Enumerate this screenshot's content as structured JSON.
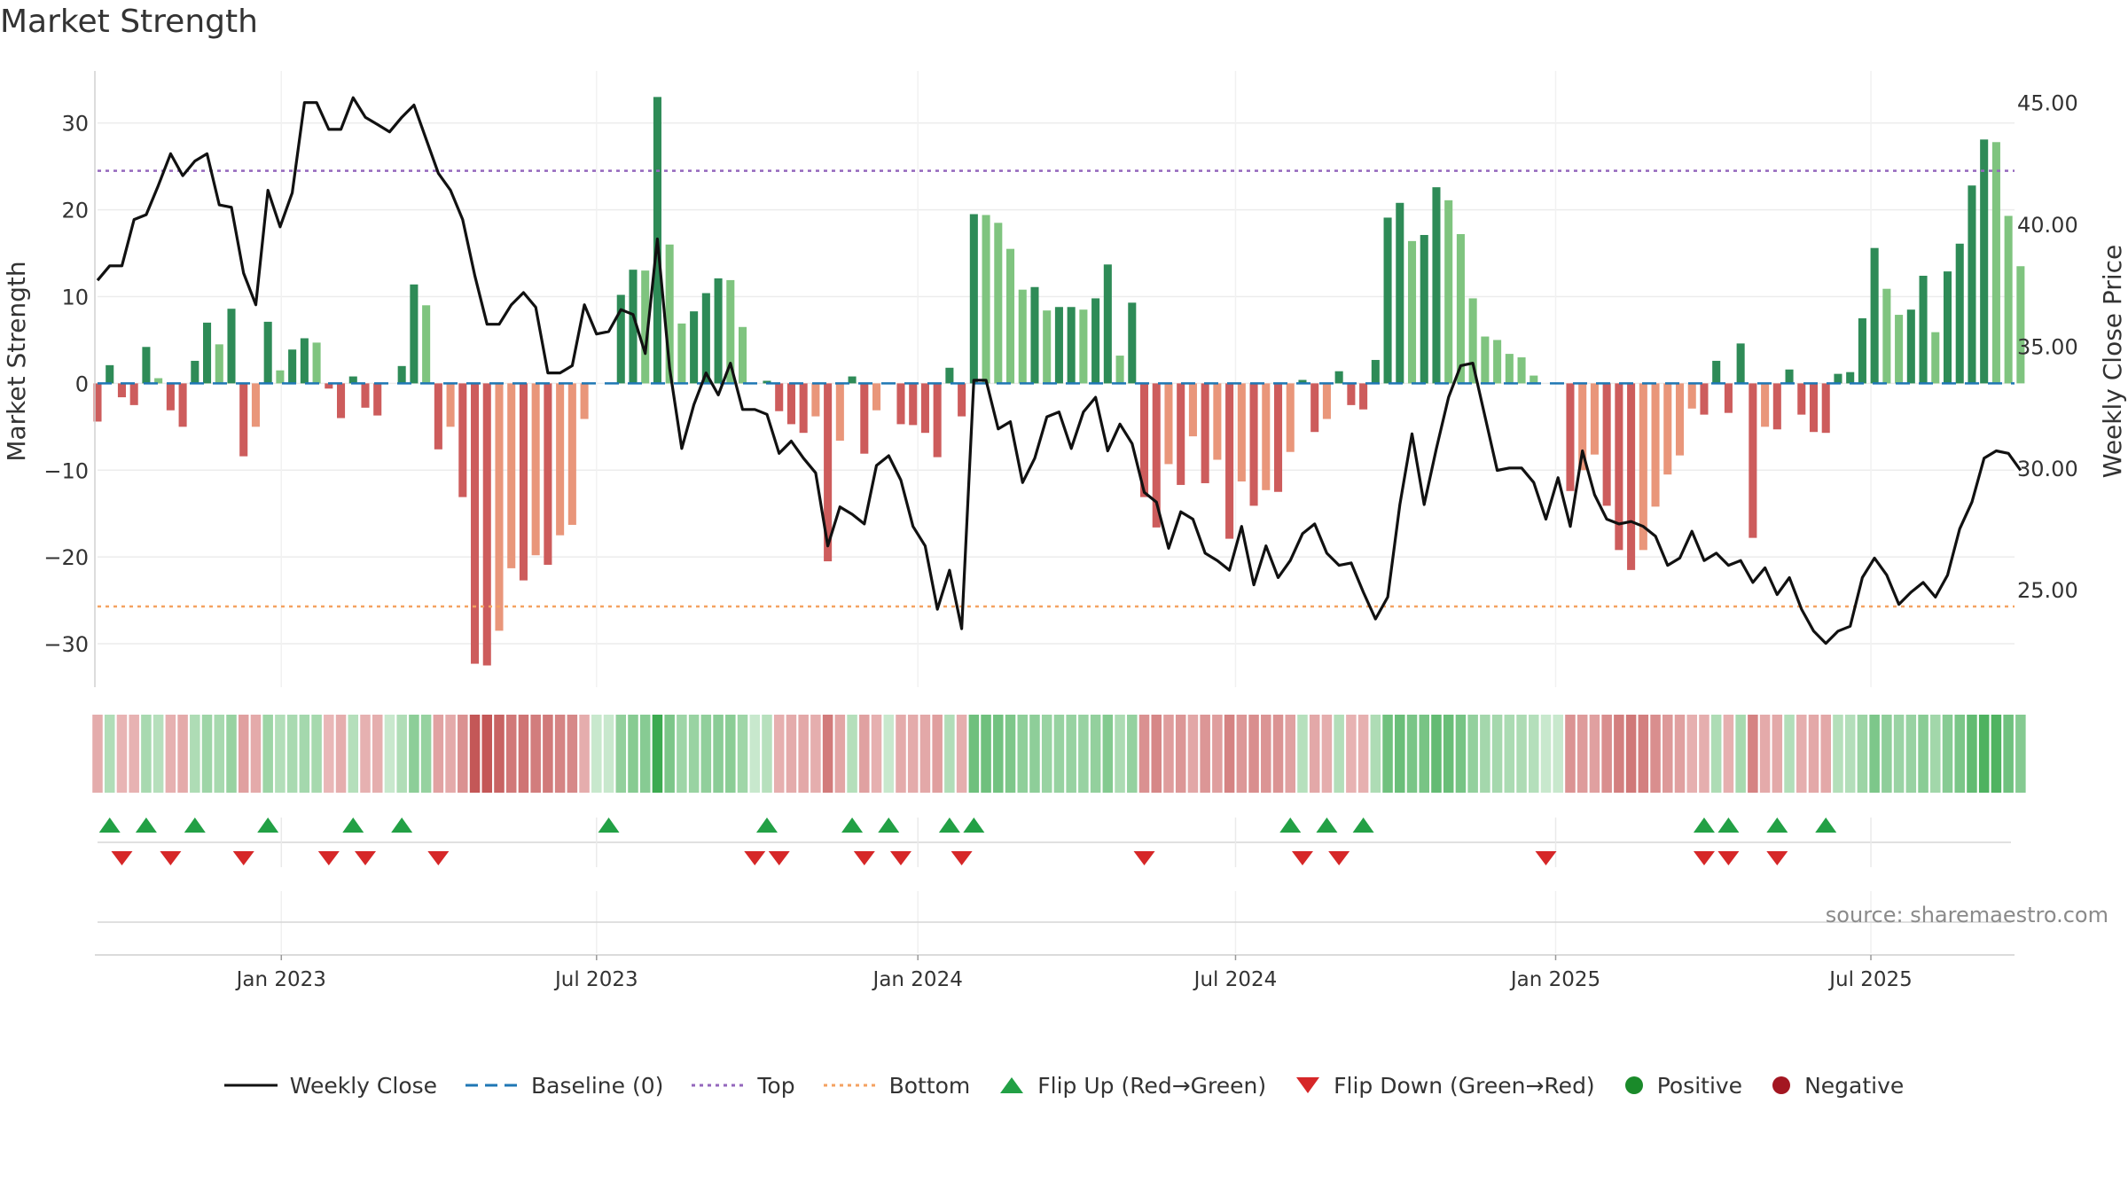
{
  "title": "Market Strength",
  "source": "source: sharemaestro.com",
  "colors": {
    "price": "#111111",
    "baseline": "#1f77b4",
    "top": "#9467bd",
    "bottom": "#f4a261",
    "up": "#22a045",
    "down": "#d62728",
    "positive": "#1a8a2a",
    "negative": "#a31621",
    "dark_green": "#2e8b57",
    "light_green": "#7fc47f",
    "dark_red": "#cd5c5c",
    "light_red": "#e9967a"
  },
  "legend": [
    {
      "key": "weekly-close",
      "label": "Weekly Close"
    },
    {
      "key": "baseline",
      "label": "Baseline (0)"
    },
    {
      "key": "top",
      "label": "Top"
    },
    {
      "key": "bottom",
      "label": "Bottom"
    },
    {
      "key": "flip-up",
      "label": "Flip Up (Red→Green)"
    },
    {
      "key": "flip-down",
      "label": "Flip Down (Green→Red)"
    },
    {
      "key": "positive",
      "label": "Positive"
    },
    {
      "key": "negative",
      "label": "Negative"
    }
  ],
  "chart_data": {
    "type": "bar",
    "title": "Market Strength",
    "ylabel": "Market Strength",
    "y2label": "Weekly Close Price",
    "ylim": [
      -35,
      36
    ],
    "y2lim": [
      21.0,
      46.3
    ],
    "yticks": [
      30,
      20,
      10,
      0,
      -10,
      -20,
      -30
    ],
    "y2ticks": [
      45.0,
      40.0,
      35.0,
      30.0,
      25.0
    ],
    "y2tick_labels": [
      "45.00",
      "40.00",
      "35.00",
      "30.00",
      "25.00"
    ],
    "x_range_weeks": [
      0,
      157.5
    ],
    "xticks": [
      {
        "label": "Jan 2023",
        "week": 15.1
      },
      {
        "label": "Jul 2023",
        "week": 41.0
      },
      {
        "label": "Jan 2024",
        "week": 67.4
      },
      {
        "label": "Jul 2024",
        "week": 93.5
      },
      {
        "label": "Jan 2025",
        "week": 119.8
      },
      {
        "label": "Jul 2025",
        "week": 145.7
      }
    ],
    "top_level": 24.5,
    "bottom_level": -25.7,
    "baseline": 0,
    "strength": [
      -4.4,
      2.1,
      -1.6,
      -2.5,
      4.2,
      0.6,
      -3.1,
      -5.0,
      2.6,
      7.0,
      4.5,
      8.6,
      -8.4,
      -5.0,
      7.1,
      1.5,
      3.9,
      5.2,
      4.7,
      -0.6,
      -4.0,
      0.8,
      -2.8,
      -3.7,
      0.0,
      2.0,
      11.4,
      9.0,
      -7.6,
      -5.0,
      -13.1,
      -32.3,
      -32.5,
      -28.5,
      -21.3,
      -22.7,
      -19.8,
      -20.9,
      -17.5,
      -16.3,
      -4.1,
      0.0,
      0.0,
      10.2,
      13.1,
      13.0,
      33.0,
      16.0,
      6.9,
      8.3,
      10.4,
      12.1,
      11.9,
      6.5,
      0.0,
      0.3,
      -3.2,
      -4.7,
      -5.7,
      -3.8,
      -20.5,
      -6.6,
      0.8,
      -8.1,
      -3.1,
      0.0,
      -4.7,
      -4.8,
      -5.7,
      -8.5,
      1.8,
      -3.8,
      19.5,
      19.4,
      18.5,
      15.5,
      10.8,
      11.1,
      8.4,
      8.8,
      8.8,
      8.5,
      9.8,
      13.7,
      3.2,
      9.3,
      -13.1,
      -16.6,
      -9.3,
      -11.7,
      -6.1,
      -11.5,
      -8.8,
      -17.9,
      -11.3,
      -14.1,
      -12.3,
      -12.5,
      -7.9,
      0.4,
      -5.6,
      -4.1,
      1.4,
      -2.5,
      -3.0,
      2.7,
      19.1,
      20.8,
      16.4,
      17.1,
      22.6,
      21.1,
      17.2,
      9.8,
      5.4,
      5.0,
      3.4,
      3.0,
      0.9,
      0.0,
      0.0,
      -12.4,
      -10.0,
      -8.2,
      -14.1,
      -19.2,
      -21.5,
      -19.2,
      -14.2,
      -10.5,
      -8.3,
      -2.9,
      -3.6,
      2.6,
      -3.4,
      4.6,
      -17.8,
      -5.0,
      -5.3,
      1.6,
      -3.6,
      -5.6,
      -5.7,
      1.1,
      1.3,
      7.5,
      15.6,
      10.9,
      7.9,
      8.5,
      12.4,
      5.9,
      12.9,
      16.1,
      22.8,
      28.1,
      27.8,
      19.3,
      13.5
    ],
    "close": [
      37.7,
      38.3,
      38.3,
      40.2,
      40.4,
      41.6,
      42.9,
      42.0,
      42.6,
      42.9,
      40.8,
      40.7,
      38.0,
      36.7,
      41.4,
      39.9,
      41.3,
      45.0,
      45.0,
      43.9,
      43.9,
      45.2,
      44.4,
      44.1,
      43.8,
      44.4,
      44.9,
      43.5,
      42.1,
      41.4,
      40.2,
      37.9,
      35.9,
      35.9,
      36.7,
      37.2,
      36.6,
      33.9,
      33.9,
      34.2,
      36.7,
      35.5,
      35.6,
      36.5,
      36.3,
      34.7,
      39.4,
      34.1,
      30.8,
      32.6,
      33.9,
      33.0,
      34.3,
      32.4,
      32.4,
      32.2,
      30.6,
      31.1,
      30.4,
      29.8,
      26.8,
      28.4,
      28.1,
      27.7,
      30.1,
      30.5,
      29.5,
      27.6,
      26.8,
      24.2,
      25.8,
      23.4,
      33.6,
      33.6,
      31.6,
      31.9,
      29.4,
      30.4,
      32.1,
      32.3,
      30.8,
      32.3,
      32.9,
      30.7,
      31.8,
      31.0,
      29.0,
      28.6,
      26.7,
      28.2,
      27.9,
      26.5,
      26.2,
      25.8,
      27.6,
      25.2,
      26.8,
      25.5,
      26.2,
      27.3,
      27.7,
      26.5,
      26.0,
      26.1,
      24.9,
      23.8,
      24.7,
      28.5,
      31.4,
      28.5,
      30.8,
      32.9,
      34.2,
      34.3,
      32.1,
      29.9,
      30.0,
      30.0,
      29.4,
      27.9,
      29.6,
      27.6,
      30.7,
      28.9,
      27.9,
      27.7,
      27.8,
      27.6,
      27.2,
      26.0,
      26.3,
      27.4,
      26.2,
      26.5,
      26.0,
      26.2,
      25.3,
      25.9,
      24.8,
      25.5,
      24.2,
      23.3,
      22.8,
      23.3,
      23.5,
      25.5,
      26.3,
      25.6,
      24.4,
      24.9,
      25.3,
      24.7,
      25.6,
      27.5,
      28.6,
      30.4,
      30.7,
      30.6,
      29.9
    ],
    "flip_up_weeks": [
      1,
      4,
      8,
      14,
      21,
      25,
      42,
      55,
      62,
      65,
      70,
      72,
      98,
      101,
      104,
      132,
      134,
      138,
      142
    ],
    "flip_down_weeks": [
      2,
      6,
      12,
      19,
      22,
      28,
      54,
      56,
      63,
      66,
      71,
      86,
      99,
      102,
      119,
      132,
      134,
      138
    ]
  }
}
